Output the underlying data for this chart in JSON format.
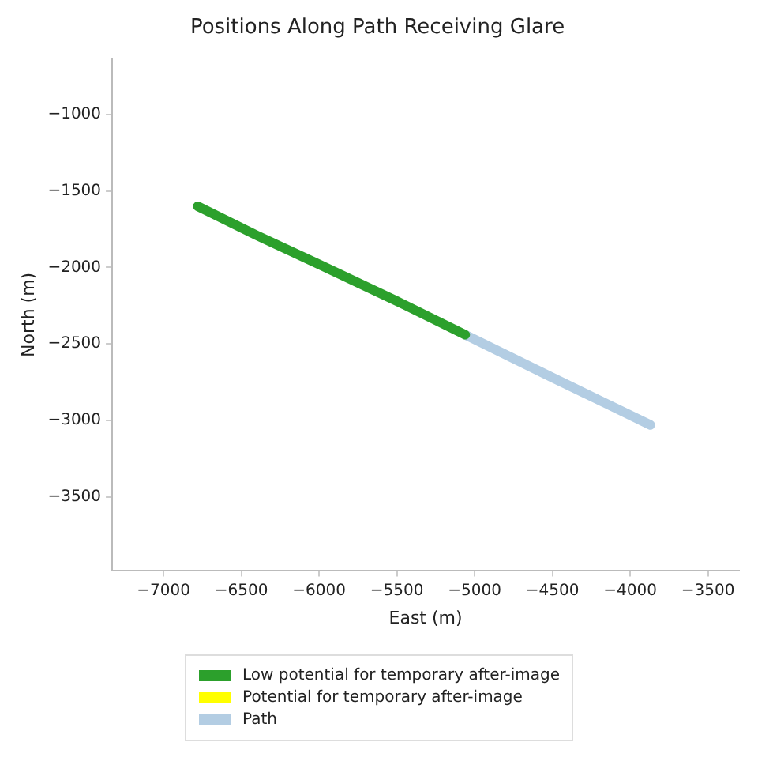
{
  "chart_data": {
    "type": "line",
    "title": "Positions Along Path Receiving Glare",
    "xlabel": "East (m)",
    "ylabel": "North (m)",
    "series": [
      {
        "name": "Low potential for temporary after-image",
        "color": "#2ca02c",
        "x": [
          -6780,
          -6400,
          -6000,
          -5500,
          -5060
        ],
        "values": [
          -1600,
          -1790,
          -1980,
          -2220,
          -2440
        ]
      },
      {
        "name": "Potential for temporary after-image",
        "color": "#ffff00"
      },
      {
        "name": "Path",
        "color": "#b3cde3",
        "x": [
          -5060,
          -4500,
          -3870
        ],
        "values": [
          -2440,
          -2720,
          -3030
        ]
      }
    ],
    "xlim": [
      -7330,
      -3300
    ],
    "xticks": [
      -7000,
      -6500,
      -6000,
      -5500,
      -5000,
      -4500,
      -4000,
      -3500
    ],
    "ylim": [
      -3980,
      -640
    ],
    "yticks": [
      -1000,
      -1500,
      -2000,
      -2500,
      -3000,
      -3500
    ],
    "grid": false,
    "legend": "bottom",
    "marker": "none",
    "line_style": "solid"
  }
}
